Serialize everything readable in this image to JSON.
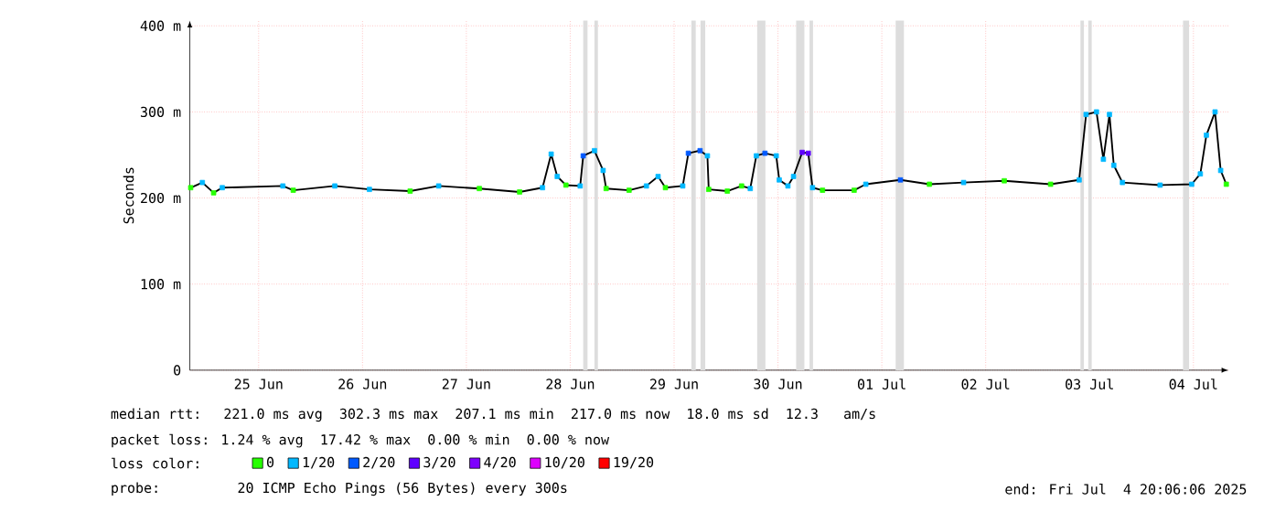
{
  "chart_data": {
    "type": "line",
    "ylabel": "Seconds",
    "xlim": [
      "2025-06-24T20:06",
      "2025-07-04T20:06"
    ],
    "ylim": [
      0,
      406
    ],
    "xticks": [
      {
        "value": "2025-06-25T12:00",
        "label": "25 Jun"
      },
      {
        "value": "2025-06-26T12:00",
        "label": "26 Jun"
      },
      {
        "value": "2025-06-27T12:00",
        "label": "27 Jun"
      },
      {
        "value": "2025-06-28T12:00",
        "label": "28 Jun"
      },
      {
        "value": "2025-06-29T12:00",
        "label": "29 Jun"
      },
      {
        "value": "2025-06-30T12:00",
        "label": "30 Jun"
      },
      {
        "value": "2025-07-01T12:00",
        "label": "01 Jul"
      },
      {
        "value": "2025-07-02T12:00",
        "label": "02 Jul"
      },
      {
        "value": "2025-07-03T12:00",
        "label": "03 Jul"
      },
      {
        "value": "2025-07-04T12:00",
        "label": "04 Jul"
      }
    ],
    "yticks": [
      {
        "value": 0,
        "label": "0"
      },
      {
        "value": 100,
        "label": "100 m"
      },
      {
        "value": 200,
        "label": "200 m"
      },
      {
        "value": 300,
        "label": "300 m"
      },
      {
        "value": 400,
        "label": "400 m"
      }
    ],
    "grid": true,
    "legend": "bottom",
    "line_style": "solid",
    "bands": [
      {
        "axis": "x",
        "from": "2025-06-28T15:00",
        "to": "2025-06-28T16:00",
        "color": "#dddddd"
      },
      {
        "axis": "x",
        "from": "2025-06-28T17:36",
        "to": "2025-06-28T18:24",
        "color": "#dddddd"
      },
      {
        "axis": "x",
        "from": "2025-06-29T16:00",
        "to": "2025-06-29T17:00",
        "color": "#dddddd"
      },
      {
        "axis": "x",
        "from": "2025-06-29T18:06",
        "to": "2025-06-29T19:12",
        "color": "#dddddd"
      },
      {
        "axis": "x",
        "from": "2025-06-30T07:12",
        "to": "2025-06-30T09:06",
        "color": "#dddddd"
      },
      {
        "axis": "x",
        "from": "2025-06-30T16:12",
        "to": "2025-06-30T18:06",
        "color": "#dddddd"
      },
      {
        "axis": "x",
        "from": "2025-06-30T19:18",
        "to": "2025-06-30T20:06",
        "color": "#dddddd"
      },
      {
        "axis": "x",
        "from": "2025-07-01T15:12",
        "to": "2025-07-01T17:06",
        "color": "#dddddd"
      },
      {
        "axis": "x",
        "from": "2025-07-03T09:54",
        "to": "2025-07-03T10:42",
        "color": "#dddddd"
      },
      {
        "axis": "x",
        "from": "2025-07-03T11:42",
        "to": "2025-07-03T12:30",
        "color": "#dddddd"
      },
      {
        "axis": "x",
        "from": "2025-07-04T09:36",
        "to": "2025-07-04T11:00",
        "color": "#dddddd"
      }
    ],
    "annotations": [
      "median rtt:  221.0 ms avg  302.3 ms max  207.1 ms min  217.0 ms now  18.0 ms sd  12.3   am/s",
      "packet loss: 1.24 % avg  17.42 % max  0.00 % min  0.00 % now",
      "loss color:",
      "probe:       20 ICMP Echo Pings (56 Bytes) every 300s",
      "end: Fri Jul  4 20:06:06 2025"
    ],
    "series": [
      {
        "color": "#000000",
        "x": [
          "2025-06-24T20:18",
          "2025-06-24T23:00",
          "2025-06-25T01:36",
          "2025-06-25T03:36",
          "2025-06-25T17:36",
          "2025-06-25T20:00",
          "2025-06-26T05:36",
          "2025-06-26T13:36",
          "2025-06-26T23:00",
          "2025-06-27T05:36",
          "2025-06-27T15:00",
          "2025-06-28T00:18",
          "2025-06-28T05:36",
          "2025-06-28T07:36",
          "2025-06-28T09:00",
          "2025-06-28T11:00",
          "2025-06-28T14:18",
          "2025-06-28T15:00",
          "2025-06-28T17:36",
          "2025-06-28T19:36",
          "2025-06-28T20:18",
          "2025-06-29T01:36",
          "2025-06-29T05:36",
          "2025-06-29T08:18",
          "2025-06-29T10:00",
          "2025-06-29T14:00",
          "2025-06-29T15:18",
          "2025-06-29T18:00",
          "2025-06-29T19:42",
          "2025-06-29T20:00",
          "2025-06-30T00:18",
          "2025-06-30T03:36",
          "2025-06-30T05:36",
          "2025-06-30T07:00",
          "2025-06-30T09:00",
          "2025-06-30T11:36",
          "2025-06-30T12:18",
          "2025-06-30T14:18",
          "2025-06-30T15:36",
          "2025-06-30T17:36",
          "2025-06-30T19:00",
          "2025-06-30T20:00",
          "2025-06-30T22:18",
          "2025-07-01T05:36",
          "2025-07-01T08:18",
          "2025-07-01T16:18",
          "2025-07-01T23:00",
          "2025-07-02T06:54",
          "2025-07-02T16:18",
          "2025-07-03T03:00",
          "2025-07-03T09:36",
          "2025-07-03T11:12",
          "2025-07-03T13:36",
          "2025-07-03T15:12",
          "2025-07-03T16:36",
          "2025-07-03T17:36",
          "2025-07-03T19:36",
          "2025-07-04T04:18",
          "2025-07-04T11:36",
          "2025-07-04T13:36",
          "2025-07-04T15:00",
          "2025-07-04T17:00",
          "2025-07-04T18:18",
          "2025-07-04T19:36"
        ],
        "values": [
          212,
          218,
          206,
          212,
          214,
          209,
          214,
          210,
          208,
          214,
          211,
          207,
          212,
          251,
          225,
          215,
          214,
          249,
          255,
          232,
          211,
          209,
          214,
          225,
          212,
          214,
          252,
          255,
          249,
          210,
          208,
          214,
          211,
          249,
          252,
          249,
          221,
          214,
          225,
          253,
          252,
          212,
          209,
          209,
          216,
          221,
          216,
          218,
          220,
          216,
          221,
          297,
          300,
          245,
          297,
          238,
          218,
          215,
          216,
          228,
          273,
          300,
          232,
          216
        ]
      },
      {
        "type": "scatter",
        "marker": "square",
        "name": "0",
        "color": "#26ff00",
        "x": [
          "2025-06-24T20:18",
          "2025-06-25T01:36",
          "2025-06-25T20:00",
          "2025-06-26T23:00",
          "2025-06-27T15:00",
          "2025-06-28T00:18",
          "2025-06-28T11:00",
          "2025-06-28T20:18",
          "2025-06-29T01:36",
          "2025-06-29T10:00",
          "2025-06-29T20:00",
          "2025-06-30T00:18",
          "2025-06-30T03:36",
          "2025-06-30T22:18",
          "2025-07-01T05:36",
          "2025-07-01T23:00",
          "2025-07-02T16:18",
          "2025-07-03T03:00",
          "2025-07-04T19:36"
        ],
        "values": [
          212,
          206,
          209,
          208,
          211,
          207,
          215,
          211,
          209,
          212,
          210,
          208,
          214,
          209,
          209,
          216,
          220,
          216,
          216
        ]
      },
      {
        "type": "scatter",
        "marker": "square",
        "name": "1/20",
        "color": "#00b8ff",
        "x": [
          "2025-06-24T23:00",
          "2025-06-25T03:36",
          "2025-06-25T17:36",
          "2025-06-26T05:36",
          "2025-06-26T13:36",
          "2025-06-27T05:36",
          "2025-06-28T05:36",
          "2025-06-28T07:36",
          "2025-06-28T09:00",
          "2025-06-28T14:18",
          "2025-06-28T17:36",
          "2025-06-28T19:36",
          "2025-06-29T05:36",
          "2025-06-29T08:18",
          "2025-06-29T14:00",
          "2025-06-29T19:42",
          "2025-06-30T05:36",
          "2025-06-30T07:00",
          "2025-06-30T11:36",
          "2025-06-30T12:18",
          "2025-06-30T14:18",
          "2025-06-30T15:36",
          "2025-06-30T20:00",
          "2025-07-01T08:18",
          "2025-07-02T06:54",
          "2025-07-03T09:36",
          "2025-07-03T11:12",
          "2025-07-03T13:36",
          "2025-07-03T15:12",
          "2025-07-03T16:36",
          "2025-07-03T17:36",
          "2025-07-03T19:36",
          "2025-07-04T04:18",
          "2025-07-04T11:36",
          "2025-07-04T13:36",
          "2025-07-04T15:00",
          "2025-07-04T17:00",
          "2025-07-04T18:18"
        ],
        "values": [
          218,
          212,
          214,
          214,
          210,
          214,
          212,
          251,
          225,
          214,
          255,
          232,
          214,
          225,
          214,
          249,
          211,
          249,
          249,
          221,
          214,
          225,
          212,
          216,
          218,
          221,
          297,
          300,
          245,
          297,
          238,
          218,
          215,
          216,
          228,
          273,
          300,
          232
        ]
      },
      {
        "type": "scatter",
        "marker": "square",
        "name": "2/20",
        "color": "#0059ff",
        "x": [
          "2025-06-28T15:00",
          "2025-06-29T15:18",
          "2025-06-29T18:00",
          "2025-06-30T09:00",
          "2025-07-01T16:18"
        ],
        "values": [
          249,
          252,
          255,
          252,
          221
        ]
      },
      {
        "type": "scatter",
        "marker": "square",
        "name": "3/20",
        "color": "#5e00ff",
        "x": [
          "2025-06-30T17:36",
          "2025-06-30T19:00"
        ],
        "values": [
          253,
          252
        ]
      },
      {
        "type": "scatter",
        "marker": "square",
        "name": "4/20",
        "color": "#7e00ff"
      },
      {
        "type": "scatter",
        "marker": "square",
        "name": "10/20",
        "color": "#dd00ff"
      },
      {
        "type": "scatter",
        "marker": "square",
        "name": "19/20",
        "color": "#ff0000"
      }
    ]
  }
}
